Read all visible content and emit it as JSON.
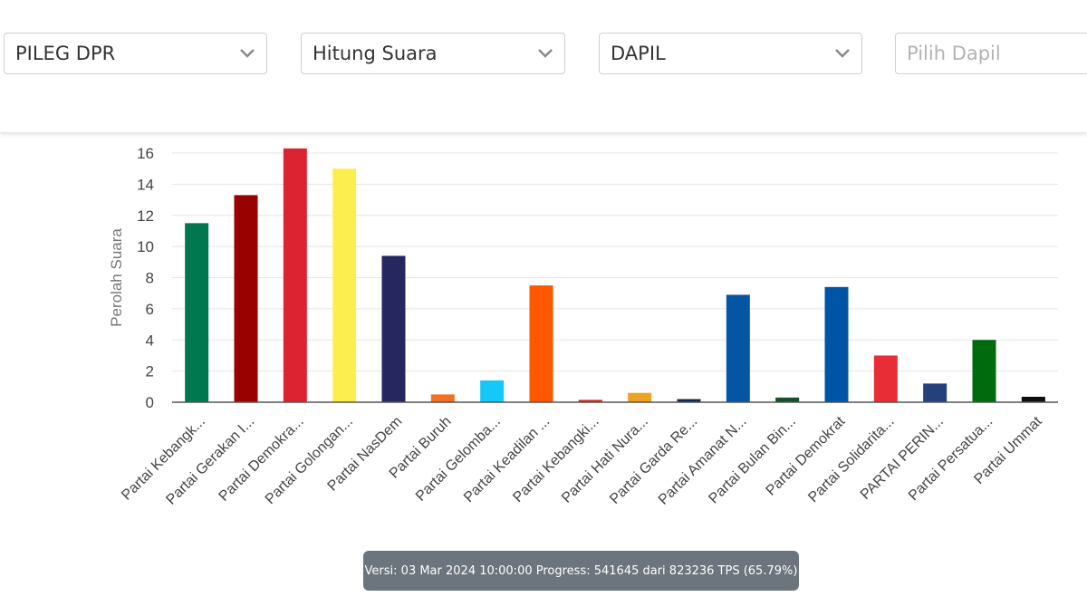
{
  "filters": [
    {
      "value": "PILEG DPR",
      "placeholder": false
    },
    {
      "value": "Hitung Suara",
      "placeholder": false
    },
    {
      "value": "DAPIL",
      "placeholder": false
    },
    {
      "value": "Pilih Dapil",
      "placeholder": true
    }
  ],
  "status": {
    "text": "Versi: 03 Mar 2024 10:00:00 Progress: 541645 dari 823236 TPS (65.79%)"
  },
  "colors": {
    "axis": "#555555",
    "grid": "#e5e5e5",
    "ylabel": "#777777"
  },
  "chart_data": {
    "type": "bar",
    "ylabel": "Perolah Suara",
    "ylim": [
      0,
      16
    ],
    "yticks": [
      0,
      2,
      4,
      6,
      8,
      10,
      12,
      14,
      16
    ],
    "grid": true,
    "legend": "none",
    "categories": [
      "Partai Kebangk...",
      "Partai Gerakan I...",
      "Partai Demokra...",
      "Partai Golongan...",
      "Partai NasDem",
      "Partai Buruh",
      "Partai Gelomba...",
      "Partai Keadilan ...",
      "Partai Kebangki...",
      "Partai Hati Nura...",
      "Partai Garda Re...",
      "Partai Amanat N...",
      "Partai Bulan Bin...",
      "Partai Demokrat",
      "Partai Solidarita...",
      "PARTAI PERIN...",
      "Partai Persatua...",
      "Partai Ummat"
    ],
    "values": [
      11.5,
      13.3,
      16.3,
      15.0,
      9.4,
      0.5,
      1.4,
      7.5,
      0.15,
      0.6,
      0.2,
      6.9,
      0.3,
      7.4,
      3.0,
      1.2,
      4.0,
      0.35
    ],
    "bar_colors": [
      "#00774f",
      "#990000",
      "#dc2331",
      "#fdee4f",
      "#27275f",
      "#f36f21",
      "#16c8f7",
      "#fd5700",
      "#d7271d",
      "#eda127",
      "#0f2c4c",
      "#0455a4",
      "#14502b",
      "#0054a6",
      "#e82d37",
      "#25417c",
      "#006b0d",
      "#0e0e0e"
    ]
  }
}
